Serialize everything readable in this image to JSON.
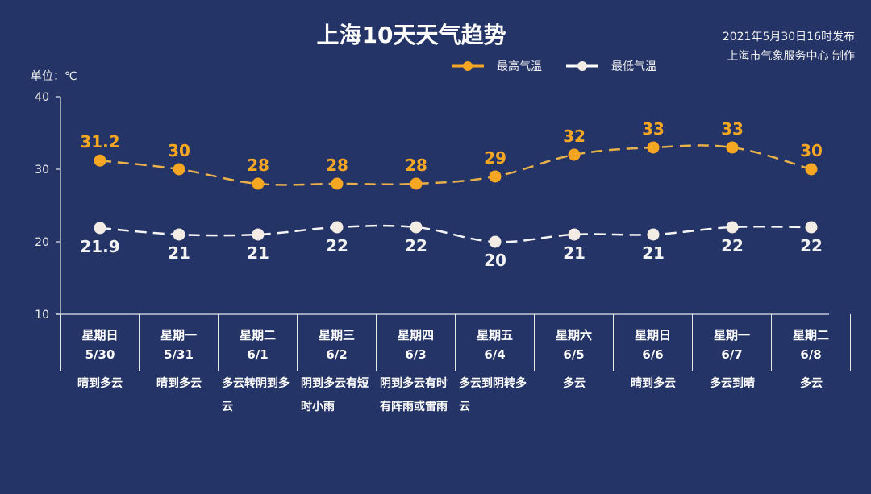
{
  "header": {
    "title": "上海10天天气趋势",
    "publish_time": "2021年5月30日16时发布",
    "producer": "上海市气象服务中心 制作",
    "unit": "单位：℃"
  },
  "legend": {
    "high_label": "最高气温",
    "low_label": "最低气温"
  },
  "colors": {
    "background": "#243466",
    "high": "#f5a623",
    "low": "#f3ece4",
    "axis": "#e8e8e8"
  },
  "chart_data": {
    "type": "line",
    "title": "上海10天天气趋势",
    "ylabel": "单位：℃",
    "ylim": [
      10,
      40
    ],
    "yticks": [
      10,
      20,
      30,
      40
    ],
    "grid": false,
    "legend_position": "top",
    "categories": [
      "5/30",
      "5/31",
      "6/1",
      "6/2",
      "6/3",
      "6/4",
      "6/5",
      "6/6",
      "6/7",
      "6/8"
    ],
    "series": [
      {
        "name": "最高气温",
        "values": [
          31.2,
          30,
          28,
          28,
          28,
          29,
          32,
          33,
          33,
          30
        ]
      },
      {
        "name": "最低气温",
        "values": [
          21.9,
          21,
          21,
          22,
          22,
          20,
          21,
          21,
          22,
          22
        ]
      }
    ]
  },
  "days": [
    {
      "weekday": "星期日",
      "date": "5/30",
      "weather": "晴到多云"
    },
    {
      "weekday": "星期一",
      "date": "5/31",
      "weather": "晴到多云"
    },
    {
      "weekday": "星期二",
      "date": "6/1",
      "weather": "多云转阴到多云"
    },
    {
      "weekday": "星期三",
      "date": "6/2",
      "weather": "阴到多云有短时小雨"
    },
    {
      "weekday": "星期四",
      "date": "6/3",
      "weather": "阴到多云有时有阵雨或雷雨"
    },
    {
      "weekday": "星期五",
      "date": "6/4",
      "weather": "多云到阴转多云"
    },
    {
      "weekday": "星期六",
      "date": "6/5",
      "weather": "多云"
    },
    {
      "weekday": "星期日",
      "date": "6/6",
      "weather": "晴到多云"
    },
    {
      "weekday": "星期一",
      "date": "6/7",
      "weather": "多云到晴"
    },
    {
      "weekday": "星期二",
      "date": "6/8",
      "weather": "多云"
    }
  ]
}
